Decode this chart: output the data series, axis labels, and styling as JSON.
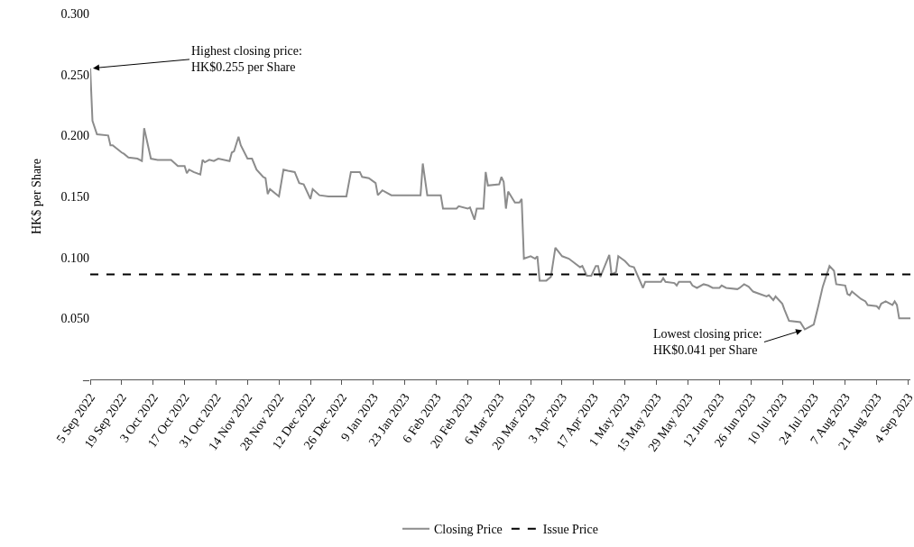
{
  "chart_data": {
    "type": "line",
    "ylabel": "HK$ per Share",
    "xlim": [
      "2022-09-05",
      "2023-09-05"
    ],
    "xticks": [
      {
        "value": "2022-09-05",
        "label": "5 Sep 2022"
      },
      {
        "value": "2022-09-19",
        "label": "19 Sep 2022"
      },
      {
        "value": "2022-10-03",
        "label": "3 Oct 2022"
      },
      {
        "value": "2022-10-17",
        "label": "17 Oct 2022"
      },
      {
        "value": "2022-10-31",
        "label": "31 Oct 2022"
      },
      {
        "value": "2022-11-14",
        "label": "14 Nov 2022"
      },
      {
        "value": "2022-11-28",
        "label": "28 Nov 2022"
      },
      {
        "value": "2022-12-12",
        "label": "12 Dec 2022"
      },
      {
        "value": "2022-12-26",
        "label": "26 Dec 2022"
      },
      {
        "value": "2023-01-09",
        "label": "9 Jan 2023"
      },
      {
        "value": "2023-01-23",
        "label": "23 Jan 2023"
      },
      {
        "value": "2023-02-06",
        "label": "6 Feb 2023"
      },
      {
        "value": "2023-02-20",
        "label": "20 Feb 2023"
      },
      {
        "value": "2023-03-06",
        "label": "6 Mar 2023"
      },
      {
        "value": "2023-03-20",
        "label": "20 Mar 2023"
      },
      {
        "value": "2023-04-03",
        "label": "3 Apr 2023"
      },
      {
        "value": "2023-04-17",
        "label": "17 Apr 2023"
      },
      {
        "value": "2023-05-01",
        "label": "1 May 2023"
      },
      {
        "value": "2023-05-15",
        "label": "15 May 2023"
      },
      {
        "value": "2023-05-29",
        "label": "29 May 2023"
      },
      {
        "value": "2023-06-12",
        "label": "12 Jun 2023"
      },
      {
        "value": "2023-06-26",
        "label": "26 Jun 2023"
      },
      {
        "value": "2023-07-10",
        "label": "10 Jul 2023"
      },
      {
        "value": "2023-07-24",
        "label": "24 Jul 2023"
      },
      {
        "value": "2023-08-07",
        "label": "7 Aug 2023"
      },
      {
        "value": "2023-08-21",
        "label": "21 Aug 2023"
      },
      {
        "value": "2023-09-04",
        "label": "4 Sep 2023"
      }
    ],
    "ylim": [
      0,
      0.3
    ],
    "yticks": [
      {
        "value": 0,
        "label": "–"
      },
      {
        "value": 0.05,
        "label": "0.050"
      },
      {
        "value": 0.1,
        "label": "0.100"
      },
      {
        "value": 0.15,
        "label": "0.150"
      },
      {
        "value": 0.2,
        "label": "0.200"
      },
      {
        "value": 0.25,
        "label": "0.250"
      },
      {
        "value": 0.3,
        "label": "0.300"
      }
    ],
    "grid": false,
    "legend": "bottom",
    "marker": "none",
    "series": [
      {
        "name": "Closing Price",
        "color": "#8c8c8c",
        "line_style": "solid",
        "x": [
          "2022-09-05",
          "2022-09-06",
          "2022-09-08",
          "2022-09-13",
          "2022-09-14",
          "2022-09-15",
          "2022-09-19",
          "2022-09-20",
          "2022-09-22",
          "2022-09-26",
          "2022-09-28",
          "2022-09-29",
          "2022-10-02",
          "2022-10-05",
          "2022-10-11",
          "2022-10-14",
          "2022-10-17",
          "2022-10-18",
          "2022-10-19",
          "2022-10-21",
          "2022-10-24",
          "2022-10-25",
          "2022-10-26",
          "2022-10-28",
          "2022-10-30",
          "2022-11-01",
          "2022-11-06",
          "2022-11-07",
          "2022-11-08",
          "2022-11-10",
          "2022-11-11",
          "2022-11-14",
          "2022-11-16",
          "2022-11-18",
          "2022-11-21",
          "2022-11-22",
          "2022-11-23",
          "2022-11-24",
          "2022-11-28",
          "2022-11-30",
          "2022-12-02",
          "2022-12-05",
          "2022-12-07",
          "2022-12-09",
          "2022-12-12",
          "2022-12-13",
          "2022-12-16",
          "2022-12-20",
          "2022-12-28",
          "2022-12-30",
          "2023-01-03",
          "2023-01-04",
          "2023-01-07",
          "2023-01-10",
          "2023-01-11",
          "2023-01-13",
          "2023-01-17",
          "2023-01-20",
          "2023-01-30",
          "2023-01-31",
          "2023-02-02",
          "2023-02-08",
          "2023-02-09",
          "2023-02-15",
          "2023-02-16",
          "2023-02-20",
          "2023-02-21",
          "2023-02-23",
          "2023-02-24",
          "2023-02-27",
          "2023-02-28",
          "2023-03-01",
          "2023-03-06",
          "2023-03-07",
          "2023-03-08",
          "2023-03-09",
          "2023-03-10",
          "2023-03-13",
          "2023-03-15",
          "2023-03-16",
          "2023-03-17",
          "2023-03-20",
          "2023-03-22",
          "2023-03-23",
          "2023-03-24",
          "2023-03-27",
          "2023-03-29",
          "2023-03-31",
          "2023-04-03",
          "2023-04-06",
          "2023-04-11",
          "2023-04-12",
          "2023-04-14",
          "2023-04-16",
          "2023-04-18",
          "2023-04-19",
          "2023-04-20",
          "2023-04-22",
          "2023-04-24",
          "2023-04-25",
          "2023-04-27",
          "2023-04-28",
          "2023-05-01",
          "2023-05-03",
          "2023-05-05",
          "2023-05-09",
          "2023-05-10",
          "2023-05-17",
          "2023-05-18",
          "2023-05-19",
          "2023-05-23",
          "2023-05-24",
          "2023-05-25",
          "2023-05-30",
          "2023-05-31",
          "2023-06-02",
          "2023-06-05",
          "2023-06-07",
          "2023-06-09",
          "2023-06-12",
          "2023-06-13",
          "2023-06-15",
          "2023-06-20",
          "2023-06-21",
          "2023-06-23",
          "2023-06-25",
          "2023-06-27",
          "2023-06-30",
          "2023-07-03",
          "2023-07-04",
          "2023-07-06",
          "2023-07-07",
          "2023-07-10",
          "2023-07-11",
          "2023-07-13",
          "2023-07-18",
          "2023-07-20",
          "2023-07-22",
          "2023-07-24",
          "2023-07-26",
          "2023-07-28",
          "2023-07-31",
          "2023-08-02",
          "2023-08-03",
          "2023-08-07",
          "2023-08-08",
          "2023-08-09",
          "2023-08-10",
          "2023-08-14",
          "2023-08-16",
          "2023-08-17",
          "2023-08-21",
          "2023-08-22",
          "2023-08-23",
          "2023-08-25",
          "2023-08-27",
          "2023-08-28",
          "2023-08-29",
          "2023-08-30",
          "2023-08-31",
          "2023-09-05"
        ],
        "values": [
          0.255,
          0.212,
          0.201,
          0.2,
          0.192,
          0.192,
          0.186,
          0.185,
          0.182,
          0.181,
          0.179,
          0.206,
          0.181,
          0.18,
          0.18,
          0.175,
          0.175,
          0.169,
          0.172,
          0.17,
          0.168,
          0.18,
          0.178,
          0.18,
          0.179,
          0.181,
          0.179,
          0.186,
          0.187,
          0.199,
          0.192,
          0.181,
          0.181,
          0.172,
          0.166,
          0.165,
          0.152,
          0.156,
          0.15,
          0.172,
          0.171,
          0.17,
          0.161,
          0.16,
          0.148,
          0.156,
          0.151,
          0.15,
          0.15,
          0.17,
          0.17,
          0.166,
          0.165,
          0.161,
          0.151,
          0.155,
          0.151,
          0.151,
          0.151,
          0.177,
          0.151,
          0.151,
          0.14,
          0.14,
          0.142,
          0.14,
          0.141,
          0.131,
          0.14,
          0.14,
          0.17,
          0.159,
          0.16,
          0.166,
          0.162,
          0.14,
          0.154,
          0.145,
          0.145,
          0.148,
          0.099,
          0.101,
          0.099,
          0.101,
          0.081,
          0.081,
          0.084,
          0.108,
          0.101,
          0.099,
          0.092,
          0.093,
          0.085,
          0.085,
          0.093,
          0.093,
          0.084,
          0.093,
          0.102,
          0.086,
          0.088,
          0.101,
          0.097,
          0.093,
          0.092,
          0.075,
          0.08,
          0.08,
          0.083,
          0.08,
          0.079,
          0.077,
          0.08,
          0.08,
          0.077,
          0.075,
          0.078,
          0.077,
          0.075,
          0.075,
          0.077,
          0.075,
          0.074,
          0.075,
          0.078,
          0.076,
          0.072,
          0.07,
          0.068,
          0.069,
          0.065,
          0.068,
          0.062,
          0.057,
          0.048,
          0.047,
          0.041,
          0.043,
          0.045,
          0.06,
          0.076,
          0.093,
          0.089,
          0.078,
          0.077,
          0.07,
          0.069,
          0.072,
          0.066,
          0.064,
          0.061,
          0.06,
          0.058,
          0.062,
          0.064,
          0.062,
          0.061,
          0.064,
          0.061,
          0.05,
          0.05
        ]
      },
      {
        "name": "Issue Price",
        "color": "#000000",
        "line_style": "dashed",
        "x": [
          "2022-09-05",
          "2023-09-05"
        ],
        "values": [
          0.086,
          0.086
        ]
      }
    ],
    "annotations": [
      {
        "text": "Highest closing price:\nHK$0.255 per Share",
        "x": "2022-09-05",
        "y": 0.255
      },
      {
        "text": "Lowest closing price:\nHK$0.041 per Share",
        "x": "2023-07-20",
        "y": 0.041
      }
    ]
  }
}
